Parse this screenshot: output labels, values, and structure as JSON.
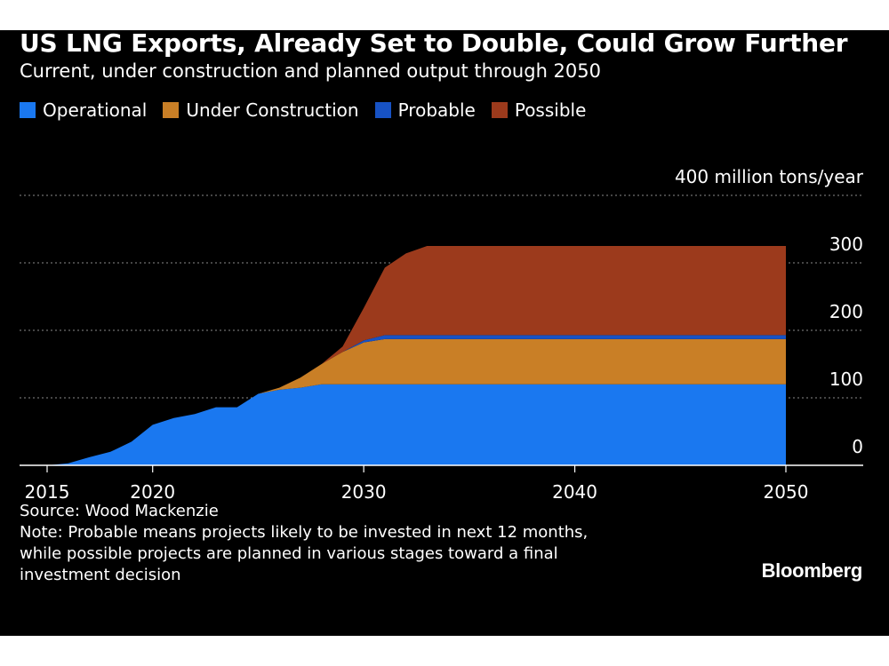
{
  "title": "US LNG Exports, Already Set to Double, Could Grow Further",
  "subtitle": "Current, under construction and planned output through 2050",
  "legend": [
    {
      "label": "Operational",
      "color": "#1a78f0"
    },
    {
      "label": "Under Construction",
      "color": "#c97f26"
    },
    {
      "label": "Probable",
      "color": "#1752c4"
    },
    {
      "label": "Possible",
      "color": "#9c3a1c"
    }
  ],
  "footer": {
    "source": "Source: Wood Mackenzie",
    "note_lines": [
      "Note: Probable means projects likely to be invested in next 12 months,",
      "while possible projects are planned in various stages toward a final",
      "investment decision"
    ]
  },
  "brand": "Bloomberg",
  "chart_data": {
    "type": "area",
    "stacked": true,
    "title": "US LNG Exports, Already Set to Double, Could Grow Further",
    "subtitle": "Current, under construction and planned output through 2050",
    "ylabel": "million tons/year",
    "ylim": [
      0,
      400
    ],
    "xlim": [
      2014,
      2054
    ],
    "yticks": [
      0,
      100,
      200,
      300,
      400
    ],
    "ytick_labels": [
      "0",
      "100",
      "200",
      "300",
      "400 million tons/year"
    ],
    "xticks": [
      2015,
      2020,
      2030,
      2040,
      2050
    ],
    "xtick_labels": [
      "2015",
      "2020",
      "2030",
      "2040",
      "2050"
    ],
    "grid": true,
    "legend_position": "top-left",
    "x": [
      2015,
      2016,
      2017,
      2018,
      2019,
      2020,
      2021,
      2022,
      2023,
      2024,
      2025,
      2026,
      2027,
      2028,
      2029,
      2030,
      2031,
      2032,
      2033,
      2034,
      2035,
      2036,
      2037,
      2038,
      2039,
      2040,
      2041,
      2042,
      2043,
      2044,
      2045,
      2046,
      2047,
      2048,
      2049,
      2050
    ],
    "series": [
      {
        "name": "Operational",
        "color": "#1a78f0",
        "values": [
          0,
          3,
          12,
          20,
          35,
          60,
          70,
          76,
          86,
          86,
          106,
          112,
          115,
          120,
          120,
          120,
          120,
          120,
          120,
          120,
          120,
          120,
          120,
          120,
          120,
          120,
          120,
          120,
          120,
          120,
          120,
          120,
          120,
          120,
          120,
          120
        ]
      },
      {
        "name": "Under Construction",
        "color": "#c97f26",
        "values": [
          0,
          0,
          0,
          0,
          0,
          0,
          0,
          0,
          0,
          0,
          0,
          3,
          15,
          30,
          48,
          62,
          67,
          67,
          67,
          67,
          67,
          67,
          67,
          67,
          67,
          67,
          67,
          67,
          67,
          67,
          67,
          67,
          67,
          67,
          67,
          67
        ]
      },
      {
        "name": "Probable",
        "color": "#1752c4",
        "values": [
          0,
          0,
          0,
          0,
          0,
          0,
          0,
          0,
          0,
          0,
          0,
          0,
          0,
          0,
          0,
          3,
          6,
          6,
          6,
          6,
          6,
          6,
          6,
          6,
          6,
          6,
          6,
          6,
          6,
          6,
          6,
          6,
          6,
          6,
          6,
          6
        ]
      },
      {
        "name": "Possible",
        "color": "#9c3a1c",
        "values": [
          0,
          0,
          0,
          0,
          0,
          0,
          0,
          0,
          0,
          0,
          0,
          0,
          0,
          0,
          8,
          48,
          100,
          121,
          132,
          132,
          132,
          132,
          132,
          132,
          132,
          132,
          132,
          132,
          132,
          132,
          132,
          132,
          132,
          132,
          132,
          132
        ]
      }
    ]
  }
}
